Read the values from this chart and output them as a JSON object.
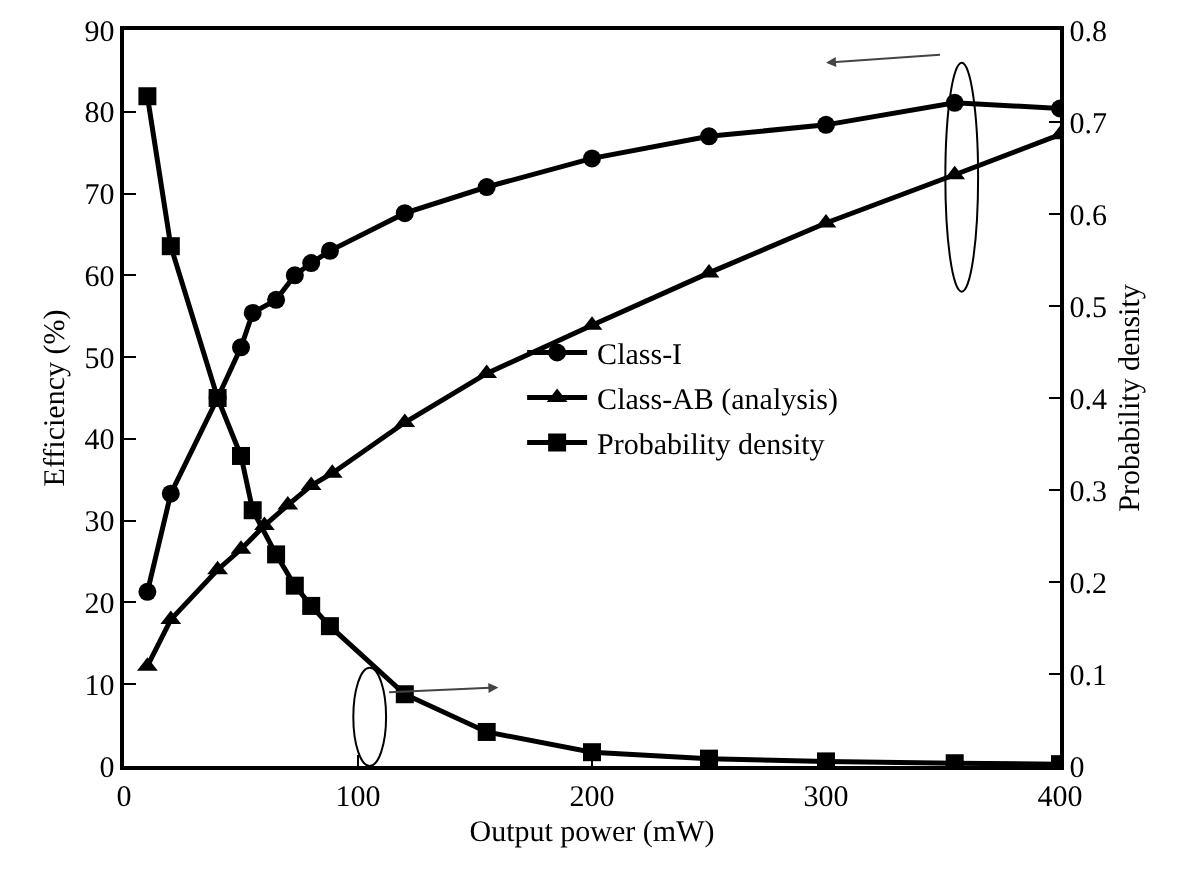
{
  "chart_data": {
    "type": "line",
    "xlabel": "Output power (mW)",
    "ylabel": "Efficiency (%)",
    "y2label": "Probability density",
    "xlim": [
      0,
      400
    ],
    "xticks": [
      0,
      100,
      200,
      300,
      400
    ],
    "ylim": [
      0,
      90
    ],
    "yticks": [
      0,
      10,
      20,
      30,
      40,
      50,
      60,
      70,
      80,
      90
    ],
    "y2lim": [
      0,
      0.8
    ],
    "y2ticks": [
      0,
      0.1,
      0.2,
      0.3,
      0.4,
      0.5,
      0.6,
      0.7,
      0.8
    ],
    "grid": false,
    "legend": "right",
    "line_style": "solid",
    "series": [
      {
        "name": "Class-I",
        "color": "#000000",
        "marker": "circle",
        "x": [
          10,
          20,
          40,
          50,
          55,
          65,
          73,
          80,
          88,
          120,
          155,
          200,
          250,
          300,
          355,
          400
        ],
        "values": [
          21.3,
          33.3,
          45,
          51.2,
          55.4,
          57,
          60,
          61.5,
          63,
          67.6,
          70.8,
          74.3,
          77,
          78.4,
          81.1,
          80.4
        ]
      },
      {
        "name": "Class-AB (analysis)",
        "color": "#000000",
        "marker": "triangle",
        "x": [
          10,
          20,
          40,
          50,
          60,
          70,
          80,
          89,
          120,
          155,
          200,
          250,
          300,
          355,
          400
        ],
        "values": [
          12.2,
          17.9,
          24,
          26.5,
          29.4,
          31.9,
          34.3,
          35.8,
          42,
          48,
          53.9,
          60.3,
          66.4,
          72.3,
          77.2
        ]
      },
      {
        "name": "Probability density",
        "color": "#000000",
        "marker": "square",
        "axis": "y2",
        "x": [
          10,
          20,
          40,
          50,
          55,
          65,
          73,
          80,
          88,
          120,
          155,
          200,
          250,
          300,
          355,
          400
        ],
        "values": [
          0.728,
          0.565,
          0.4,
          0.337,
          0.278,
          0.23,
          0.196,
          0.174,
          0.152,
          0.078,
          0.037,
          0.015,
          0.008,
          0.005,
          0.003,
          0.002
        ]
      }
    ]
  }
}
